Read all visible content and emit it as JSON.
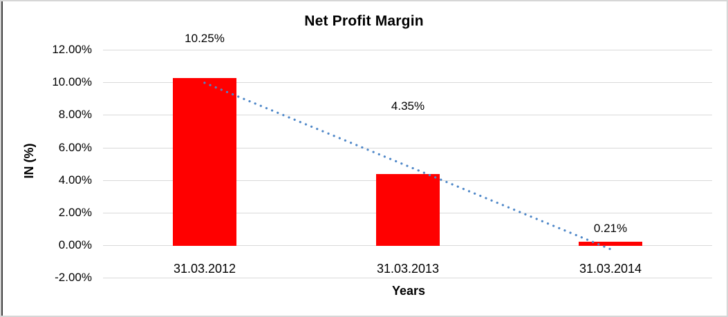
{
  "chart_data": {
    "type": "bar",
    "title": "Net Profit Margin",
    "xlabel": "Years",
    "ylabel": "IN (%)",
    "categories": [
      "31.03.2012",
      "31.03.2013",
      "31.03.2014"
    ],
    "series": [
      {
        "name": "Net Profit Margin",
        "values": [
          10.25,
          4.35,
          0.21
        ]
      }
    ],
    "data_labels": [
      "10.25%",
      "4.35%",
      "0.21%"
    ],
    "data_label_value_positions": [
      12.66,
      8.52,
      1.02
    ],
    "ylim": [
      -2,
      12
    ],
    "ytick_step": 2,
    "ytick_labels_ascending": [
      "-2.00%",
      "0.00%",
      "2.00%",
      "4.00%",
      "6.00%",
      "8.00%",
      "10.00%",
      "12.00%"
    ],
    "grid": true,
    "legend": "none",
    "bar_color": "#FF0000",
    "gridline_color": "#D9D9D9",
    "trendline": {
      "type": "linear",
      "style": "dotted",
      "color": "#4E87C8",
      "start_value_pct": 9.97,
      "end_value_pct": -0.25
    }
  }
}
